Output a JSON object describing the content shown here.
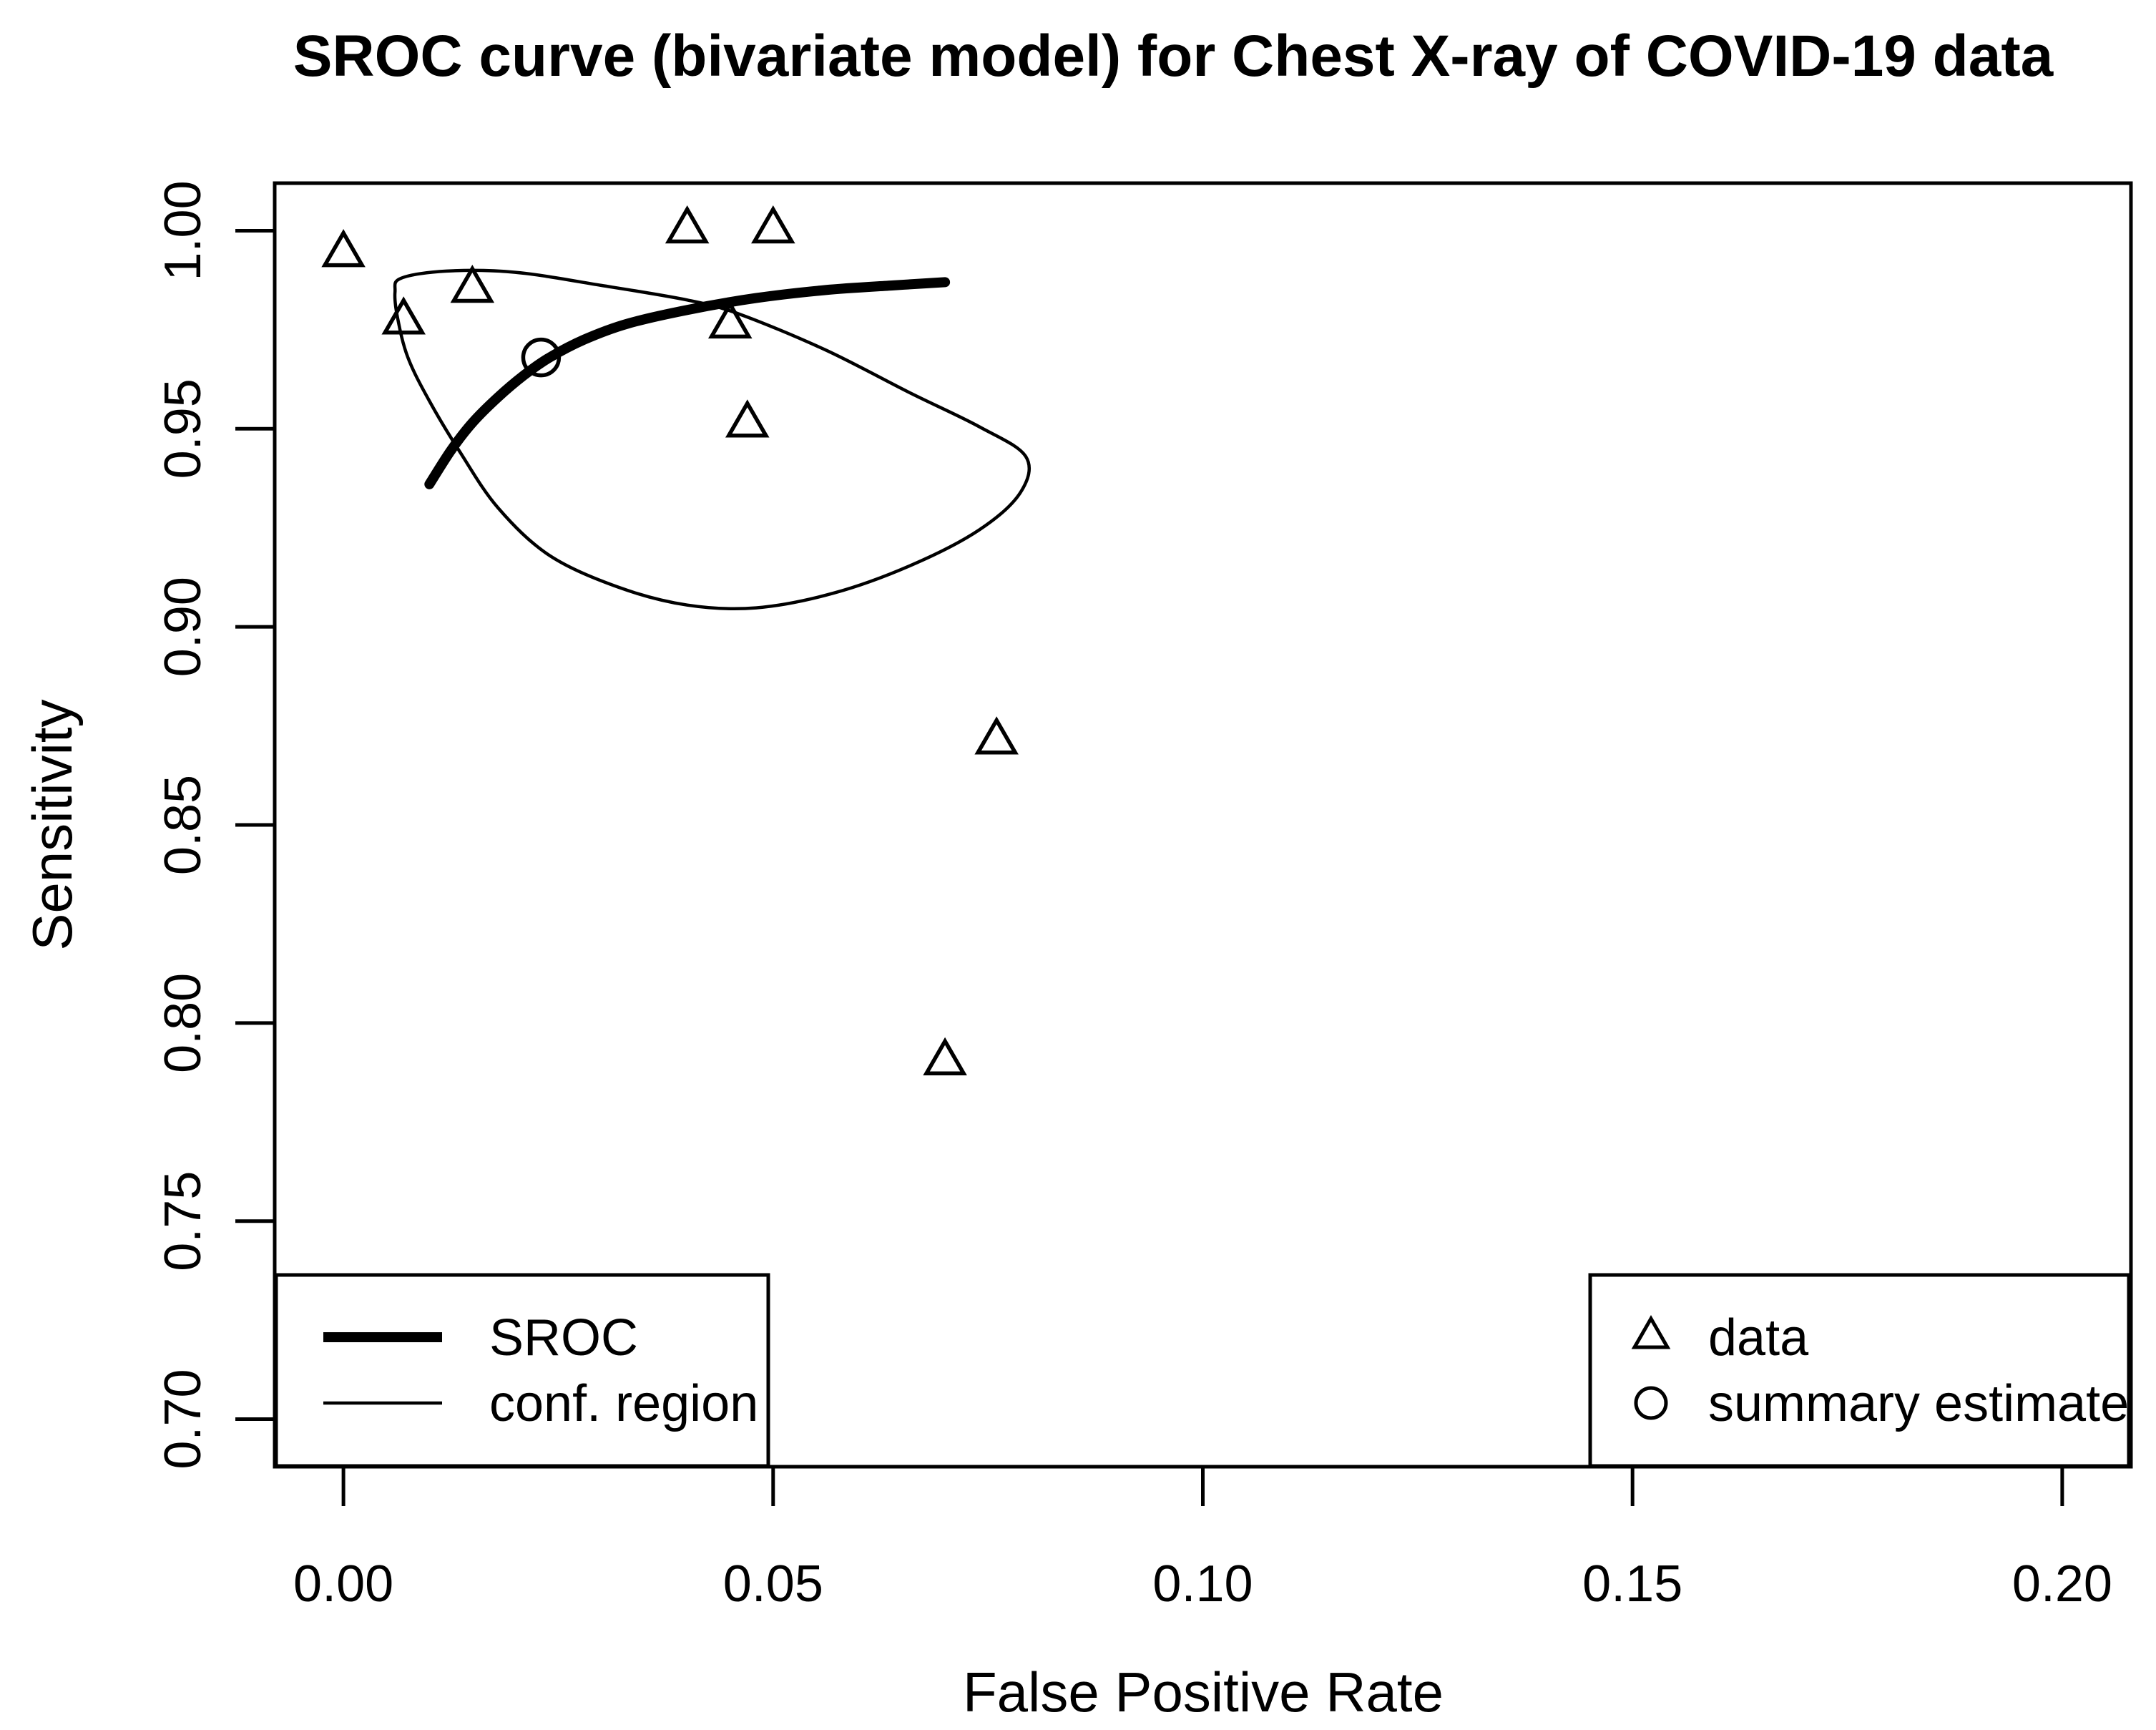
{
  "chart_data": {
    "type": "scatter",
    "title": "SROC curve (bivariate model) for Chest X-ray of COVID-19 data",
    "xlabel": "False Positive Rate",
    "ylabel": "Sensitivity",
    "xlim": [
      -0.008,
      0.208
    ],
    "ylim": [
      0.688,
      1.012
    ],
    "grid": "off",
    "xticks": [
      0.0,
      0.05,
      0.1,
      0.15,
      0.2
    ],
    "xtick_labels": [
      "0.00",
      "0.05",
      "0.10",
      "0.15",
      "0.20"
    ],
    "yticks": [
      0.7,
      0.75,
      0.8,
      0.85,
      0.9,
      0.95,
      1.0
    ],
    "ytick_labels": [
      "0.70",
      "0.75",
      "0.80",
      "0.85",
      "0.90",
      "0.95",
      "1.00"
    ],
    "series": [
      {
        "name": "data",
        "type": "scatter",
        "marker": "open-triangle",
        "points": [
          [
            0.0,
            0.994
          ],
          [
            0.007,
            0.977
          ],
          [
            0.015,
            0.985
          ],
          [
            0.04,
            1.0
          ],
          [
            0.05,
            1.0
          ],
          [
            0.045,
            0.976
          ],
          [
            0.047,
            0.951
          ],
          [
            0.076,
            0.871
          ],
          [
            0.07,
            0.79
          ]
        ]
      },
      {
        "name": "summary estimate",
        "type": "scatter",
        "marker": "open-circle",
        "points": [
          [
            0.023,
            0.968
          ]
        ]
      },
      {
        "name": "SROC",
        "type": "line",
        "line_weight": "thick",
        "points": [
          [
            0.01,
            0.936
          ],
          [
            0.0125,
            0.9445
          ],
          [
            0.015,
            0.9515
          ],
          [
            0.018,
            0.958
          ],
          [
            0.021,
            0.9635
          ],
          [
            0.024,
            0.968
          ],
          [
            0.028,
            0.9725
          ],
          [
            0.033,
            0.9765
          ],
          [
            0.04,
            0.98
          ],
          [
            0.048,
            0.983
          ],
          [
            0.056,
            0.985
          ],
          [
            0.064,
            0.9862
          ],
          [
            0.07,
            0.987
          ]
        ]
      },
      {
        "name": "conf. region",
        "type": "closed-curve",
        "line_weight": "thin",
        "points": [
          [
            0.0067,
            0.988
          ],
          [
            0.012,
            0.9898
          ],
          [
            0.02,
            0.9895
          ],
          [
            0.03,
            0.9862
          ],
          [
            0.04,
            0.9825
          ],
          [
            0.046,
            0.979
          ],
          [
            0.056,
            0.97
          ],
          [
            0.066,
            0.959
          ],
          [
            0.074,
            0.9505
          ],
          [
            0.0794,
            0.943
          ],
          [
            0.0788,
            0.934
          ],
          [
            0.074,
            0.9245
          ],
          [
            0.066,
            0.9155
          ],
          [
            0.057,
            0.9085
          ],
          [
            0.048,
            0.9048
          ],
          [
            0.04,
            0.9055
          ],
          [
            0.032,
            0.91
          ],
          [
            0.024,
            0.918
          ],
          [
            0.018,
            0.93
          ],
          [
            0.0136,
            0.944
          ],
          [
            0.01,
            0.957
          ],
          [
            0.0075,
            0.968
          ],
          [
            0.0063,
            0.978
          ],
          [
            0.006,
            0.9845
          ]
        ]
      }
    ],
    "legend_left": {
      "items": [
        {
          "label": "SROC",
          "sample": "thick-line"
        },
        {
          "label": "conf. region",
          "sample": "thin-line"
        }
      ]
    },
    "legend_right": {
      "items": [
        {
          "label": "data",
          "symbol": "open-triangle"
        },
        {
          "label": "summary estimate",
          "symbol": "open-circle"
        }
      ]
    },
    "colors": {
      "foreground": "#000000",
      "background": "#ffffff"
    }
  }
}
